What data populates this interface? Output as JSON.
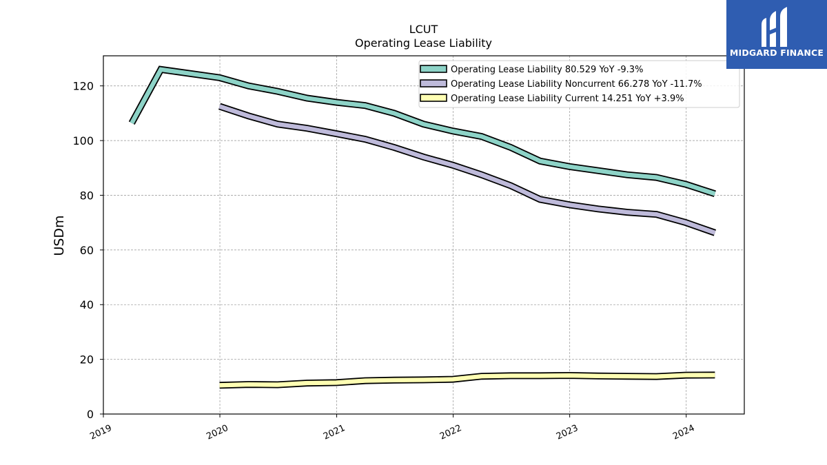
{
  "brand": {
    "name": "MIDGARD FINANCE",
    "color": "#2f5db1"
  },
  "chart_data": {
    "type": "line",
    "title": "LCUT",
    "subtitle": "Operating Lease Liability",
    "xlabel": "",
    "ylabel": "USDm",
    "xlim": [
      "2019-01-01",
      "2024-07-01"
    ],
    "ylim": [
      0,
      131
    ],
    "y_ticks": [
      0,
      20,
      40,
      60,
      80,
      100,
      120
    ],
    "x_ticks": [
      "2019",
      "2020",
      "2021",
      "2022",
      "2023",
      "2024"
    ],
    "grid": true,
    "legend_position": "top-right",
    "series": [
      {
        "name": "Operating Lease Liability  80.529 YoY -9.3%",
        "color": "#8dd3c7",
        "x": [
          "2019-03-31",
          "2019-06-30",
          "2019-12-31",
          "2020-03-31",
          "2020-06-30",
          "2020-09-30",
          "2020-12-31",
          "2021-03-31",
          "2021-06-30",
          "2021-09-30",
          "2021-12-31",
          "2022-03-31",
          "2022-06-30",
          "2022-09-30",
          "2022-12-31",
          "2023-03-31",
          "2023-06-30",
          "2023-09-30",
          "2023-12-31",
          "2024-03-31"
        ],
        "values": [
          106.4,
          126.0,
          123.0,
          120.0,
          118.0,
          115.5,
          114.0,
          112.8,
          110.0,
          106.0,
          103.5,
          101.5,
          97.5,
          92.5,
          90.5,
          89.0,
          87.5,
          86.5,
          84.0,
          80.529
        ]
      },
      {
        "name": "Operating Lease Liability Noncurrent  66.278 YoY -11.7%",
        "color": "#bebada",
        "x": [
          "2019-12-31",
          "2020-03-31",
          "2020-06-30",
          "2020-09-30",
          "2020-12-31",
          "2021-03-31",
          "2021-06-30",
          "2021-09-30",
          "2021-12-31",
          "2022-03-31",
          "2022-06-30",
          "2022-09-30",
          "2022-12-31",
          "2023-03-31",
          "2023-06-30",
          "2023-09-30",
          "2023-12-31",
          "2024-03-31"
        ],
        "values": [
          112.5,
          109.0,
          106.0,
          104.5,
          102.5,
          100.5,
          97.5,
          94.0,
          91.0,
          87.5,
          83.5,
          78.5,
          76.5,
          75.0,
          73.8,
          73.0,
          70.0,
          66.278
        ]
      },
      {
        "name": "Operating Lease Liability Current  14.251 YoY +3.9%",
        "color": "#ffffb3",
        "x": [
          "2019-12-31",
          "2020-03-31",
          "2020-06-30",
          "2020-09-30",
          "2020-12-31",
          "2021-03-31",
          "2021-06-30",
          "2021-09-30",
          "2021-12-31",
          "2022-03-31",
          "2022-06-30",
          "2022-09-30",
          "2022-12-31",
          "2023-03-31",
          "2023-06-30",
          "2023-09-30",
          "2023-12-31",
          "2024-03-31"
        ],
        "values": [
          10.5,
          10.8,
          10.7,
          11.3,
          11.5,
          12.2,
          12.4,
          12.5,
          12.7,
          13.8,
          14.0,
          14.0,
          14.1,
          13.9,
          13.8,
          13.7,
          14.2,
          14.251
        ]
      }
    ]
  }
}
